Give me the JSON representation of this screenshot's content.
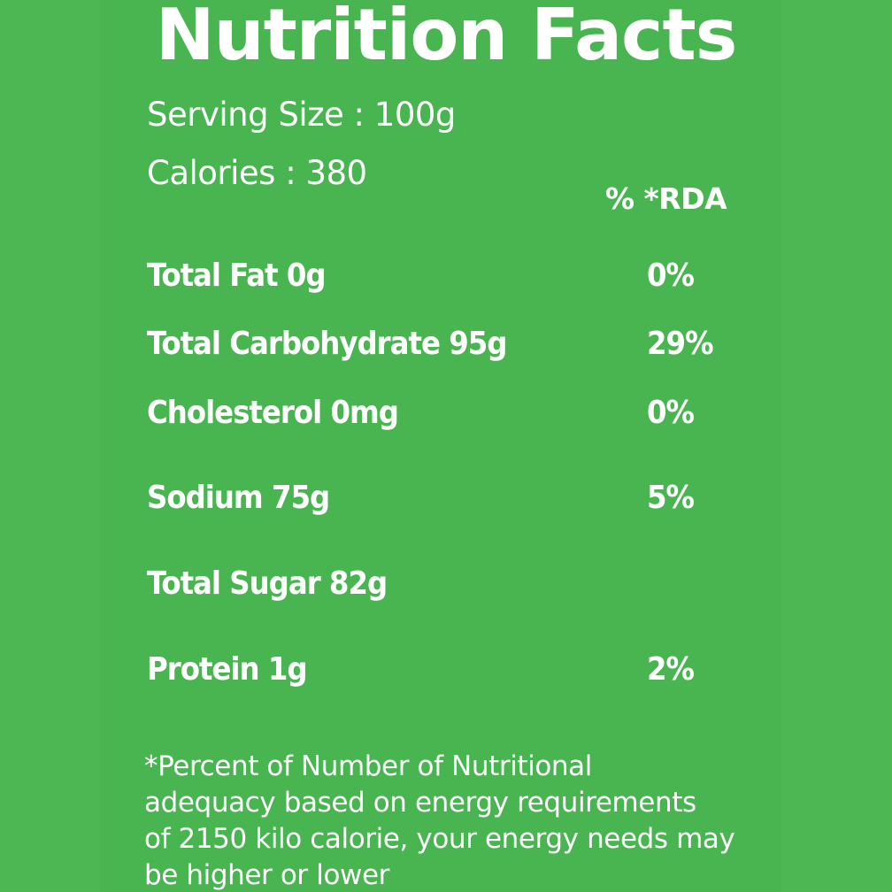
{
  "title": "Nutrition Facts",
  "serving_size": "Serving Size : 100g",
  "calories": "Calories : 380",
  "rda_header": "% *RDA",
  "rows": [
    {
      "name": "Total Fat 0g",
      "pct": "0%"
    },
    {
      "name": "Total Carbohydrate 95g",
      "pct": "29%"
    },
    {
      "name": "Cholesterol 0mg",
      "pct": "0%"
    },
    {
      "name": "Sodium 75g",
      "pct": "5%"
    },
    {
      "name": "Total Sugar 82g",
      "pct": ""
    },
    {
      "name": "Protein 1g",
      "pct": "2%"
    }
  ],
  "footnote": {
    "line1": "*Percent of Number of Nutritional",
    "line2": "adequacy based on energy requirements",
    "line3": "of 2150 kilo calorie, your energy needs may",
    "line4": "be higher or lower"
  },
  "colors": {
    "background": "#4cb753",
    "text": "#ffffff"
  }
}
